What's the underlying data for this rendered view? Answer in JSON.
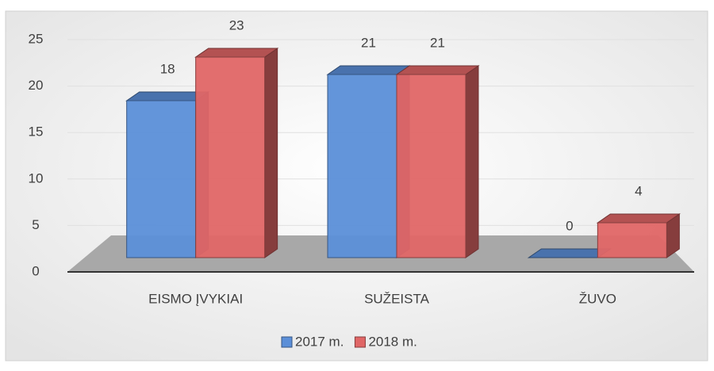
{
  "chart_data": {
    "type": "bar",
    "categories": [
      "EISMO ĮVYKIAI",
      "SUŽEISTA",
      "ŽUVO"
    ],
    "series": [
      {
        "name": "2017 m.",
        "color": "#5b8fd8",
        "values": [
          18,
          21,
          0
        ]
      },
      {
        "name": "2018 m.",
        "color": "#e06666",
        "values": [
          23,
          21,
          4
        ]
      }
    ],
    "ylim": [
      0,
      25
    ],
    "yticks": [
      0,
      5,
      10,
      15,
      20,
      25
    ],
    "grid": true,
    "legend": "bottom"
  }
}
